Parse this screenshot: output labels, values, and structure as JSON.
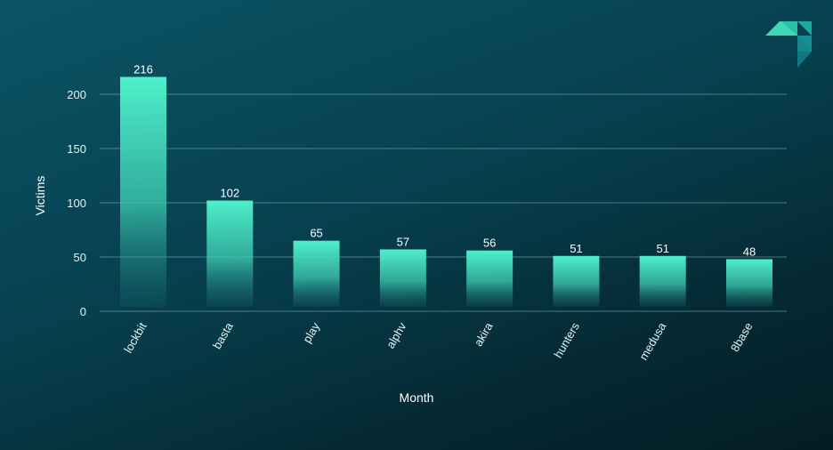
{
  "chart_data": {
    "type": "bar",
    "title": "",
    "xlabel": "Month",
    "ylabel": "Victims",
    "categories": [
      "lockbit",
      "basta",
      "play",
      "alphv",
      "akira",
      "hunters",
      "medusa",
      "8base"
    ],
    "values": [
      216,
      102,
      65,
      57,
      56,
      51,
      51,
      48
    ],
    "ylim": [
      0,
      220
    ],
    "yticks": [
      0,
      50,
      100,
      150,
      200
    ],
    "grid": true,
    "legend": "none",
    "bar_color": "#4be8c3",
    "gridline_color": "#7fb8bf"
  },
  "logo": {
    "icon": "brand-logo-icon",
    "colors": [
      "#3fd9b4",
      "#1fa6a0",
      "#128a8f"
    ]
  }
}
